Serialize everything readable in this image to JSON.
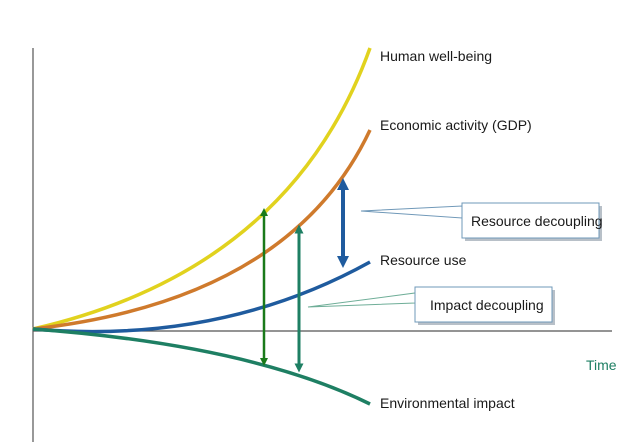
{
  "diagram": {
    "curves": [
      {
        "label": "Human well-being",
        "color": "#e1d21e"
      },
      {
        "label": "Economic activity (GDP)",
        "color": "#cf7a2c"
      },
      {
        "label": "Resource use",
        "color": "#1f5b9e"
      },
      {
        "label": "Environmental impact",
        "color": "#1e7f63"
      }
    ],
    "x_axis_label": "Time",
    "x_axis_label_color": "#1e7f63",
    "callouts": {
      "resource_decoupling": "Resource decoupling",
      "impact_decoupling": "Impact decoupling"
    },
    "arrow_colors": {
      "green_long": "#1a7a1a",
      "teal": "#1e7f63",
      "blue": "#1f5b9e"
    }
  }
}
